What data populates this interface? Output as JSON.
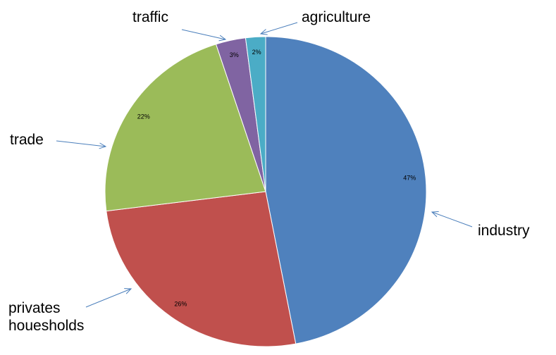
{
  "chart_data": {
    "type": "pie",
    "categories": [
      "industry",
      "privates houesholds",
      "trade",
      "traffic",
      "agriculture"
    ],
    "values": [
      47,
      26,
      22,
      3,
      2
    ],
    "value_labels": [
      "47%",
      "26%",
      "22%",
      "3%",
      "2%"
    ],
    "colors": [
      "#4f81bd",
      "#c0504d",
      "#9bbb59",
      "#8064a2",
      "#4bacc6"
    ]
  }
}
